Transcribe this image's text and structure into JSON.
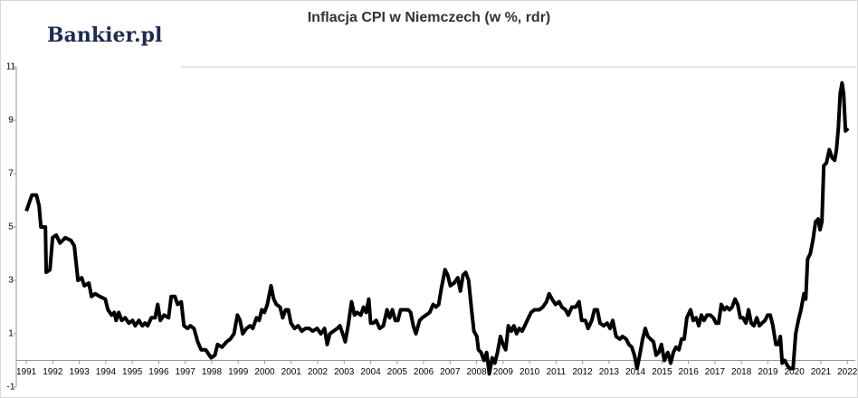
{
  "chart_data": {
    "type": "line",
    "title": "Inflacja CPI w Niemczech (w %, rdr)",
    "watermark": "Bankier.pl",
    "color": "#000000",
    "x": [
      1991.0,
      1991.21,
      1991.38,
      1991.48,
      1991.55,
      1991.72,
      1991.75,
      1991.89,
      1991.99,
      1992.13,
      1992.27,
      1992.47,
      1992.68,
      1992.81,
      1992.95,
      1993.09,
      1993.19,
      1993.36,
      1993.46,
      1993.6,
      1993.77,
      1993.98,
      1994.08,
      1994.22,
      1994.32,
      1994.39,
      1994.49,
      1994.6,
      1994.73,
      1994.87,
      1995.01,
      1995.11,
      1995.25,
      1995.38,
      1995.48,
      1995.58,
      1995.72,
      1995.86,
      1995.96,
      1996.06,
      1996.2,
      1996.37,
      1996.47,
      1996.61,
      1996.71,
      1996.85,
      1996.95,
      1997.09,
      1997.19,
      1997.33,
      1997.47,
      1997.6,
      1997.77,
      1997.98,
      1998.12,
      1998.22,
      1998.39,
      1998.56,
      1998.7,
      1998.84,
      1998.97,
      1999.07,
      1999.17,
      1999.31,
      1999.45,
      1999.55,
      1999.69,
      1999.79,
      1999.89,
      1999.99,
      2000.1,
      2000.24,
      2000.34,
      2000.44,
      2000.58,
      2000.68,
      2000.79,
      2000.89,
      2000.99,
      2001.13,
      2001.26,
      2001.4,
      2001.54,
      2001.68,
      2001.81,
      2001.98,
      2002.12,
      2002.26,
      2002.36,
      2002.46,
      2002.6,
      2002.74,
      2002.84,
      2002.98,
      2003.04,
      2003.15,
      2003.28,
      2003.39,
      2003.49,
      2003.63,
      2003.73,
      2003.83,
      2003.93,
      2004.0,
      2004.1,
      2004.21,
      2004.34,
      2004.48,
      2004.62,
      2004.72,
      2004.82,
      2004.93,
      2005.03,
      2005.13,
      2005.27,
      2005.41,
      2005.51,
      2005.61,
      2005.71,
      2005.85,
      2005.95,
      2006.09,
      2006.23,
      2006.36,
      2006.47,
      2006.57,
      2006.67,
      2006.81,
      2006.91,
      2007.01,
      2007.15,
      2007.29,
      2007.39,
      2007.49,
      2007.59,
      2007.7,
      2007.8,
      2007.9,
      2008.01,
      2008.07,
      2008.17,
      2008.28,
      2008.38,
      2008.48,
      2008.59,
      2008.69,
      2008.79,
      2008.9,
      2009.0,
      2009.1,
      2009.2,
      2009.31,
      2009.41,
      2009.51,
      2009.61,
      2009.72,
      2009.82,
      2009.96,
      2010.06,
      2010.19,
      2010.37,
      2010.5,
      2010.64,
      2010.74,
      2010.85,
      2010.98,
      2011.12,
      2011.22,
      2011.36,
      2011.46,
      2011.6,
      2011.74,
      2011.87,
      2011.97,
      2012.11,
      2012.21,
      2012.35,
      2012.45,
      2012.56,
      2012.66,
      2012.8,
      2012.93,
      2013.04,
      2013.14,
      2013.27,
      2013.41,
      2013.51,
      2013.65,
      2013.75,
      2013.86,
      2013.96,
      2014.06,
      2014.16,
      2014.27,
      2014.37,
      2014.47,
      2014.57,
      2014.68,
      2014.78,
      2014.88,
      2014.98,
      2015.09,
      2015.22,
      2015.33,
      2015.43,
      2015.53,
      2015.64,
      2015.74,
      2015.84,
      2015.94,
      2016.08,
      2016.18,
      2016.29,
      2016.39,
      2016.49,
      2016.59,
      2016.7,
      2016.83,
      2016.94,
      2017.04,
      2017.14,
      2017.24,
      2017.35,
      2017.45,
      2017.55,
      2017.65,
      2017.76,
      2017.86,
      2017.96,
      2018.06,
      2018.17,
      2018.27,
      2018.37,
      2018.47,
      2018.58,
      2018.68,
      2018.78,
      2018.89,
      2018.99,
      2019.09,
      2019.19,
      2019.3,
      2019.4,
      2019.47,
      2019.54,
      2019.64,
      2019.74,
      2019.84,
      2019.95,
      2020.05,
      2020.15,
      2020.25,
      2020.36,
      2020.43,
      2020.5,
      2020.6,
      2020.7,
      2020.8,
      2020.9,
      2020.97,
      2021.04,
      2021.11,
      2021.21,
      2021.32,
      2021.42,
      2021.52,
      2021.59,
      2021.66,
      2021.73,
      2021.8,
      2021.86,
      2021.93,
      2022.03
    ],
    "values": [
      5.6,
      6.2,
      6.2,
      5.8,
      5.0,
      5.0,
      3.3,
      3.4,
      4.6,
      4.7,
      4.4,
      4.6,
      4.5,
      4.3,
      3.0,
      3.1,
      2.8,
      2.9,
      2.4,
      2.5,
      2.4,
      2.3,
      1.9,
      1.7,
      1.8,
      1.5,
      1.8,
      1.5,
      1.6,
      1.4,
      1.5,
      1.3,
      1.5,
      1.3,
      1.4,
      1.3,
      1.6,
      1.6,
      2.1,
      1.5,
      1.7,
      1.6,
      2.4,
      2.4,
      2.1,
      2.2,
      1.3,
      1.2,
      1.3,
      1.2,
      0.7,
      0.4,
      0.4,
      0.1,
      0.2,
      0.6,
      0.5,
      0.7,
      0.8,
      1.0,
      1.7,
      1.5,
      1.0,
      1.2,
      1.3,
      1.2,
      1.6,
      1.5,
      1.9,
      1.8,
      2.1,
      2.8,
      2.3,
      2.1,
      2.0,
      1.6,
      1.9,
      1.9,
      1.4,
      1.2,
      1.3,
      1.1,
      1.2,
      1.2,
      1.1,
      1.2,
      1.0,
      1.2,
      0.6,
      1.0,
      1.1,
      1.2,
      1.3,
      0.9,
      0.7,
      1.3,
      2.2,
      1.7,
      1.8,
      1.7,
      2.0,
      1.8,
      2.3,
      1.4,
      1.4,
      1.5,
      1.2,
      1.3,
      1.9,
      1.6,
      1.9,
      1.5,
      1.5,
      1.9,
      1.9,
      1.9,
      1.8,
      1.3,
      1.0,
      1.5,
      1.6,
      1.7,
      1.8,
      2.1,
      2.0,
      2.1,
      2.7,
      3.4,
      3.2,
      2.8,
      2.9,
      3.1,
      2.6,
      3.2,
      3.3,
      3.0,
      2.0,
      1.1,
      0.9,
      0.4,
      0.3,
      0.0,
      0.3,
      -0.5,
      0.1,
      -0.1,
      0.3,
      0.9,
      0.6,
      0.4,
      1.3,
      1.1,
      1.3,
      1.0,
      1.2,
      1.1,
      1.3,
      1.6,
      1.8,
      1.9,
      1.9,
      2.0,
      2.2,
      2.5,
      2.3,
      2.1,
      2.2,
      2.0,
      1.9,
      1.7,
      2.0,
      2.0,
      2.2,
      1.5,
      1.5,
      1.2,
      1.5,
      1.9,
      1.9,
      1.4,
      1.3,
      1.4,
      1.2,
      1.5,
      0.9,
      0.8,
      0.9,
      0.8,
      0.6,
      0.5,
      0.2,
      -0.3,
      0.2,
      0.8,
      1.2,
      0.9,
      0.8,
      0.7,
      0.2,
      0.3,
      0.6,
      0.0,
      0.3,
      -0.1,
      0.3,
      0.5,
      0.4,
      0.8,
      0.8,
      1.6,
      1.9,
      1.5,
      1.6,
      1.3,
      1.7,
      1.5,
      1.7,
      1.7,
      1.6,
      1.4,
      1.4,
      2.1,
      1.9,
      2.0,
      1.9,
      2.0,
      2.3,
      2.1,
      1.6,
      1.6,
      1.4,
      1.9,
      1.4,
      1.3,
      1.6,
      1.3,
      1.4,
      1.5,
      1.7,
      1.7,
      1.3,
      0.6,
      0.6,
      0.9,
      -0.1,
      0.0,
      -0.2,
      -0.3,
      -0.3,
      1.0,
      1.5,
      1.9,
      2.5,
      2.3,
      3.8,
      4.0,
      4.5,
      5.2,
      5.3,
      4.9,
      5.2,
      7.3,
      7.4,
      7.9,
      7.6,
      7.5,
      7.9,
      8.7,
      10.0,
      10.4,
      10.0,
      8.6,
      8.7
    ],
    "xlim": [
      1990.62,
      2022.3
    ],
    "xticks": [
      1991,
      1992,
      1993,
      1994,
      1995,
      1996,
      1997,
      1998,
      1999,
      2000,
      2001,
      2002,
      2003,
      2004,
      2005,
      2006,
      2007,
      2008,
      2009,
      2010,
      2011,
      2012,
      2013,
      2014,
      2015,
      2016,
      2017,
      2018,
      2019,
      2020,
      2021,
      2022
    ],
    "ylim": [
      -1,
      11
    ],
    "yticks": [
      -1,
      1,
      3,
      5,
      7,
      9,
      11
    ]
  }
}
